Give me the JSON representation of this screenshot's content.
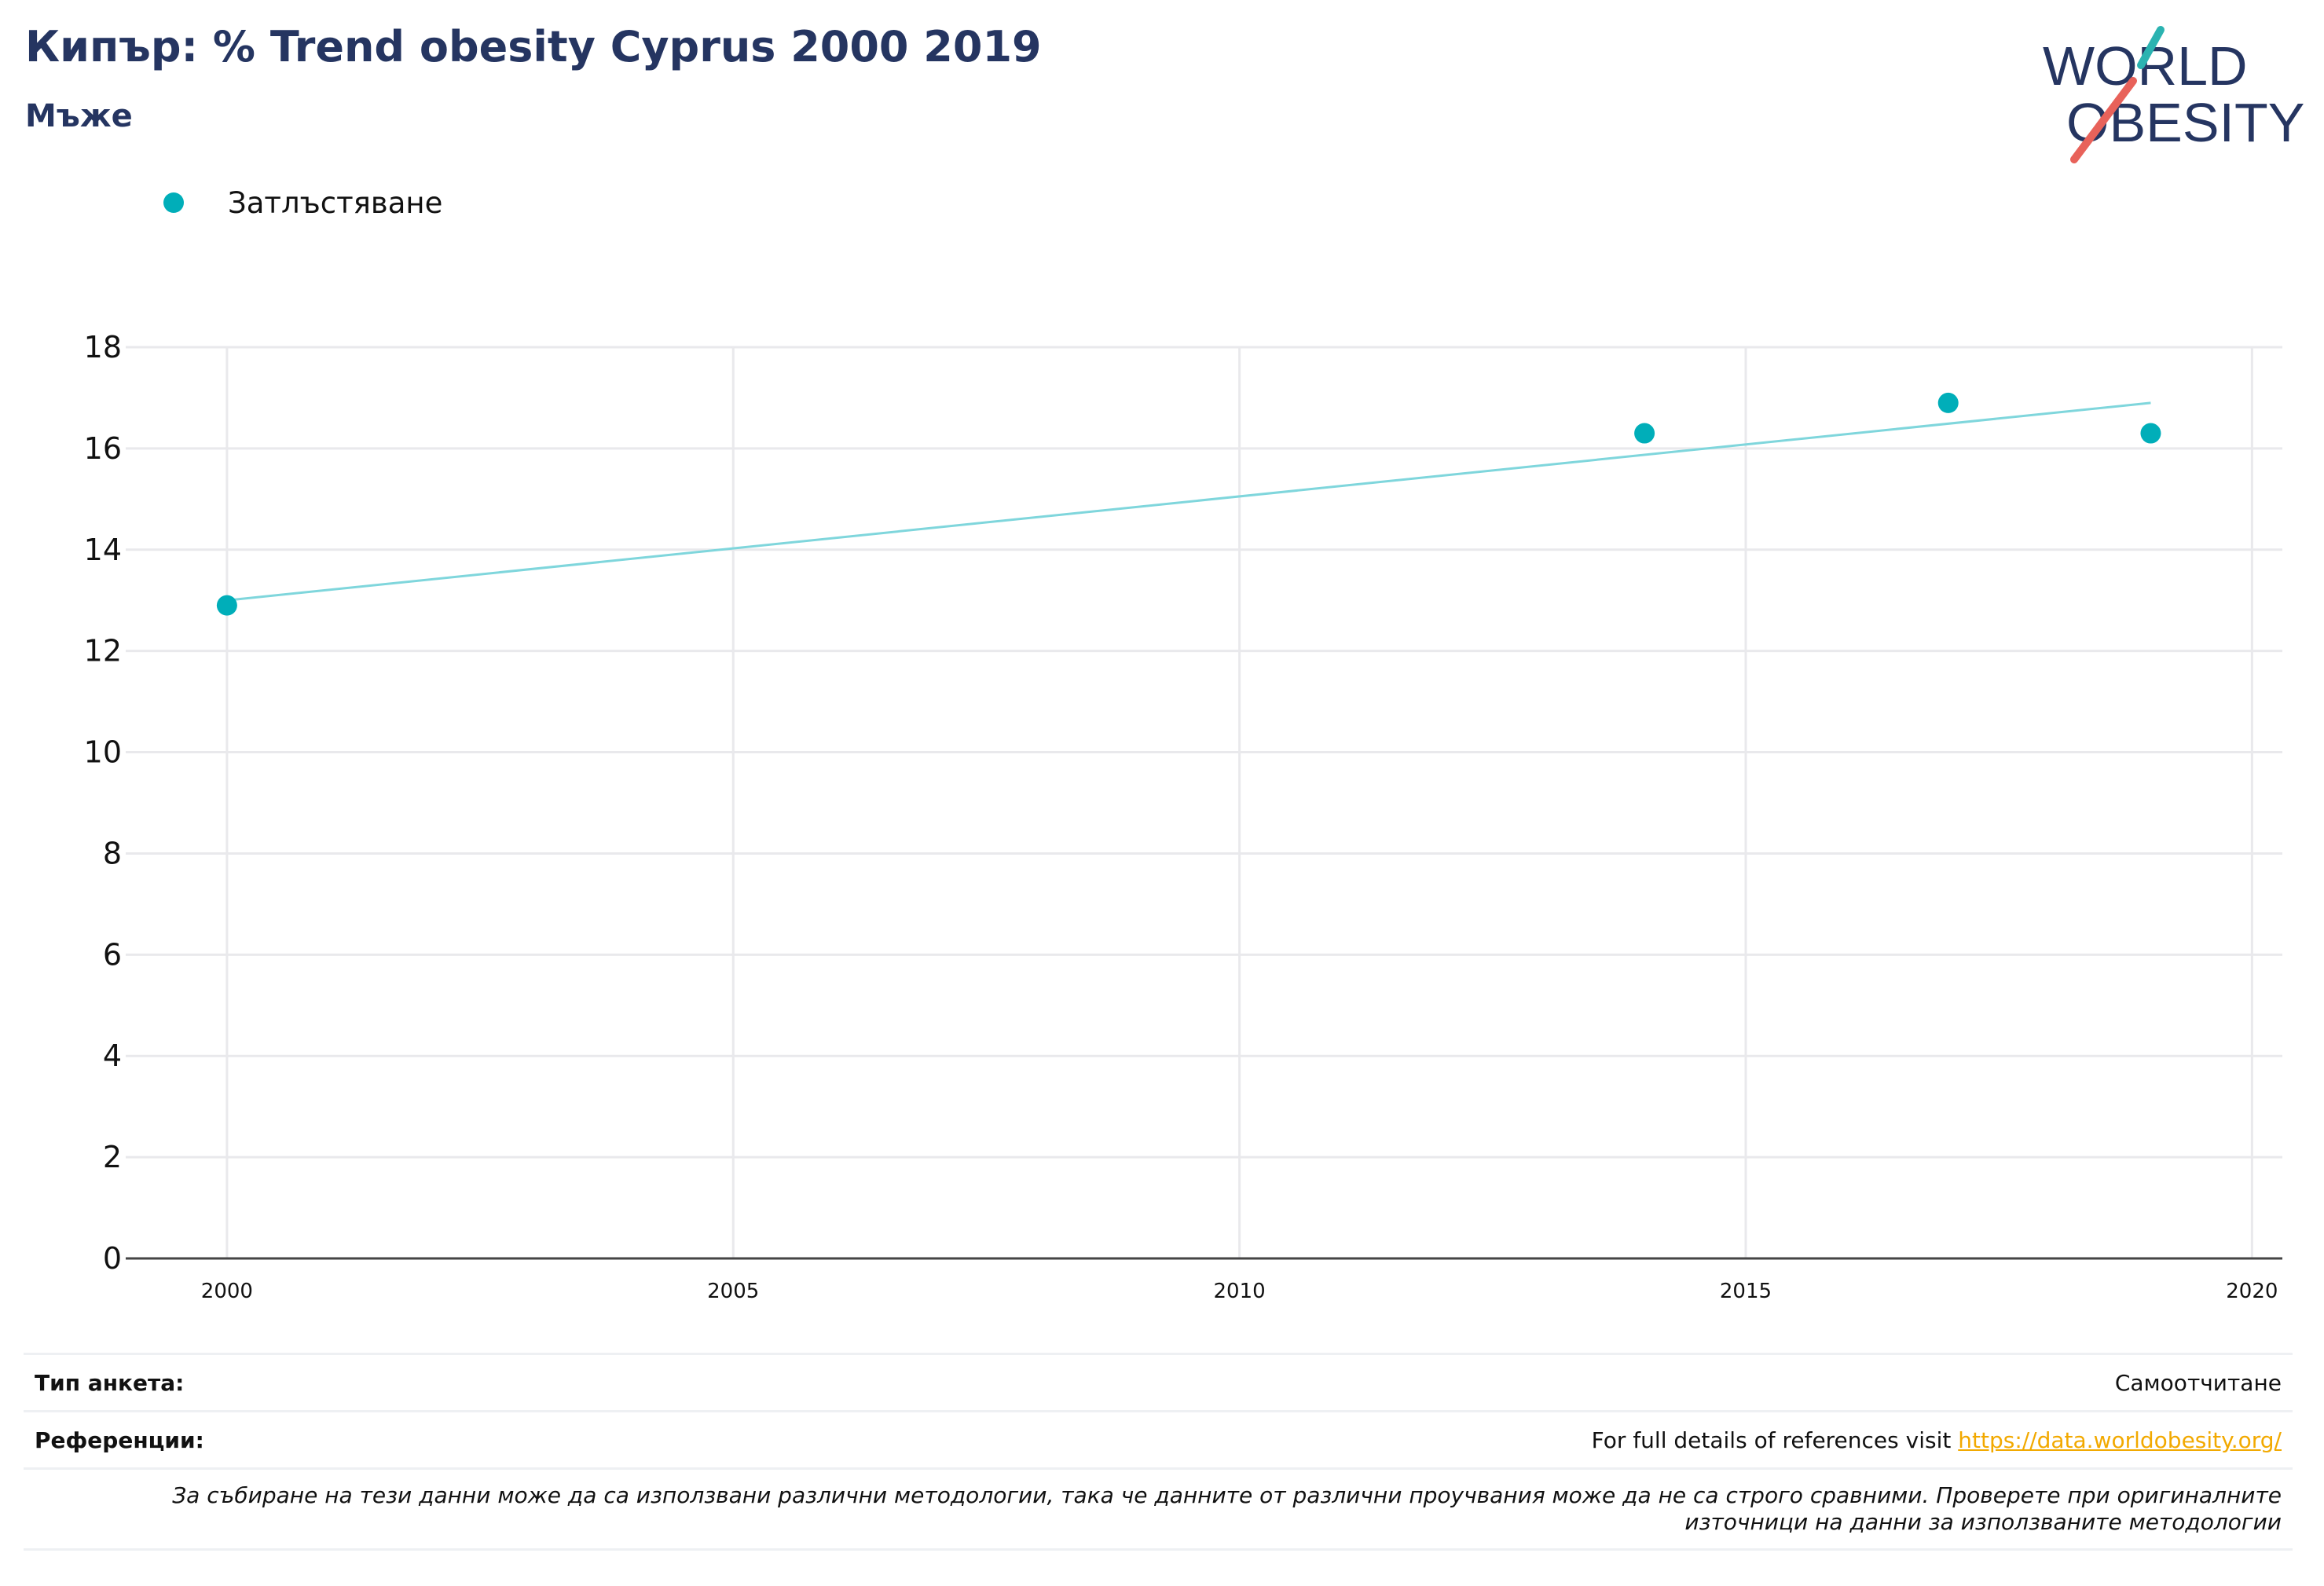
{
  "header": {
    "title": "Кипър: % Trend obesity Cyprus 2000 2019",
    "subtitle": "Мъже"
  },
  "logo": {
    "line1": "WORLD",
    "line2": "OBESITY",
    "colors": {
      "navy": "#253561",
      "teal": "#2bb3b1",
      "coral": "#e8625a"
    }
  },
  "legend": {
    "items": [
      {
        "label": "Затлъстяване",
        "color": "#00aeb9"
      }
    ]
  },
  "chart_data": {
    "type": "scatter",
    "title": "",
    "xlabel": "",
    "ylabel": "",
    "xlim": [
      1999,
      2020.3
    ],
    "ylim": [
      0,
      18
    ],
    "x_ticks": [
      2000,
      2005,
      2010,
      2015,
      2020
    ],
    "y_ticks": [
      0,
      2,
      4,
      6,
      8,
      10,
      12,
      14,
      16,
      18
    ],
    "grid": true,
    "legend_position": "top-left",
    "series": [
      {
        "name": "Затлъстяване",
        "color": "#00aeb9",
        "points": [
          {
            "x": 2000,
            "y": 12.9
          },
          {
            "x": 2014,
            "y": 16.3
          },
          {
            "x": 2017,
            "y": 16.9
          },
          {
            "x": 2019,
            "y": 16.3
          }
        ]
      }
    ],
    "trendline": {
      "color": "#7fd6dc",
      "start": {
        "x": 2000,
        "y": 13.0
      },
      "end": {
        "x": 2019,
        "y": 16.9
      }
    }
  },
  "footer": {
    "survey_type_label": "Тип анкета:",
    "survey_type_value": "Самоотчитане",
    "references_label": "Референции:",
    "references_text": "For full details of references visit ",
    "references_link": "https://data.worldobesity.org/",
    "note": "За събиране на тези данни може да са използвани различни методологии, така че данните от различни проучвания може да не са строго сравними. Проверете при оригиналните източници на данни за използваните методологии"
  }
}
